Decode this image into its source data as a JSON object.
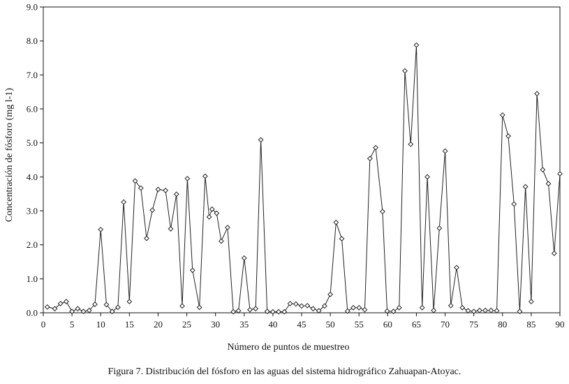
{
  "chart_data": {
    "type": "line",
    "title": "",
    "xlabel": "Número de puntos de muestreo",
    "ylabel": "Concentración de fósforo (mg l-1)",
    "xlim": [
      0,
      90
    ],
    "ylim": [
      0,
      9
    ],
    "x_ticks": [
      "0",
      "5",
      "10",
      "15",
      "20",
      "25",
      "30",
      "35",
      "40",
      "45",
      "50",
      "55",
      "60",
      "65",
      "70",
      "75",
      "80",
      "85",
      "90"
    ],
    "y_ticks": [
      "0.0",
      "1.0",
      "2.0",
      "3.0",
      "4.0",
      "5.0",
      "6.0",
      "7.0",
      "8.0",
      "9.0"
    ],
    "grid": false,
    "marker": "diamond",
    "series": [
      {
        "color": "#222222",
        "points": [
          [
            0.7,
            0.17
          ],
          [
            2,
            0.12
          ],
          [
            3,
            0.27
          ],
          [
            4,
            0.33
          ],
          [
            5,
            0.04
          ],
          [
            6,
            0.12
          ],
          [
            7,
            0.04
          ],
          [
            8,
            0.07
          ],
          [
            9,
            0.25
          ],
          [
            10,
            2.45
          ],
          [
            11,
            0.24
          ],
          [
            12,
            0.04
          ],
          [
            13,
            0.16
          ],
          [
            14,
            3.26
          ],
          [
            15,
            0.33
          ],
          [
            16,
            3.88
          ],
          [
            17,
            3.67
          ],
          [
            18,
            2.19
          ],
          [
            19,
            3.02
          ],
          [
            20,
            3.63
          ],
          [
            21.3,
            3.6
          ],
          [
            22.2,
            2.47
          ],
          [
            23.2,
            3.49
          ],
          [
            24.2,
            0.2
          ],
          [
            25.1,
            3.95
          ],
          [
            26,
            1.25
          ],
          [
            27.2,
            0.16
          ],
          [
            28.2,
            4.02
          ],
          [
            28.9,
            2.82
          ],
          [
            29.4,
            3.05
          ],
          [
            30.2,
            2.93
          ],
          [
            31,
            2.11
          ],
          [
            32.1,
            2.51
          ],
          [
            33.1,
            0.03
          ],
          [
            34,
            0.06
          ],
          [
            35,
            1.61
          ],
          [
            36,
            0.09
          ],
          [
            37,
            0.12
          ],
          [
            37.9,
            5.09
          ],
          [
            39,
            0.04
          ],
          [
            40,
            0.03
          ],
          [
            41,
            0.03
          ],
          [
            42,
            0.03
          ],
          [
            43,
            0.27
          ],
          [
            44,
            0.26
          ],
          [
            45,
            0.2
          ],
          [
            46,
            0.21
          ],
          [
            47,
            0.12
          ],
          [
            48,
            0.06
          ],
          [
            49,
            0.2
          ],
          [
            50,
            0.54
          ],
          [
            51,
            2.66
          ],
          [
            52,
            2.18
          ],
          [
            53,
            0.05
          ],
          [
            54,
            0.15
          ],
          [
            55,
            0.15
          ],
          [
            56,
            0.09
          ],
          [
            56.9,
            4.54
          ],
          [
            57.9,
            4.86
          ],
          [
            59.1,
            2.98
          ],
          [
            59.9,
            0.05
          ],
          [
            61,
            0.04
          ],
          [
            62,
            0.15
          ],
          [
            63,
            7.12
          ],
          [
            64,
            4.96
          ],
          [
            65,
            7.88
          ],
          [
            66,
            0.15
          ],
          [
            66.9,
            4.0
          ],
          [
            68,
            0.07
          ],
          [
            69,
            2.49
          ],
          [
            70,
            4.76
          ],
          [
            71,
            0.21
          ],
          [
            72,
            1.33
          ],
          [
            73,
            0.15
          ],
          [
            74,
            0.06
          ],
          [
            75,
            0.04
          ],
          [
            76,
            0.07
          ],
          [
            77,
            0.07
          ],
          [
            78,
            0.07
          ],
          [
            79,
            0.06
          ],
          [
            80,
            5.82
          ],
          [
            81,
            5.2
          ],
          [
            82,
            3.2
          ],
          [
            83,
            0.04
          ],
          [
            84,
            3.71
          ],
          [
            85,
            0.33
          ],
          [
            86,
            6.45
          ],
          [
            87,
            4.21
          ],
          [
            88,
            3.8
          ],
          [
            89,
            1.75
          ],
          [
            90,
            4.09
          ]
        ]
      }
    ]
  },
  "caption": "Figura 7. Distribución del fósforo en las aguas del sistema hidrográfico Zahuapan-Atoyac."
}
